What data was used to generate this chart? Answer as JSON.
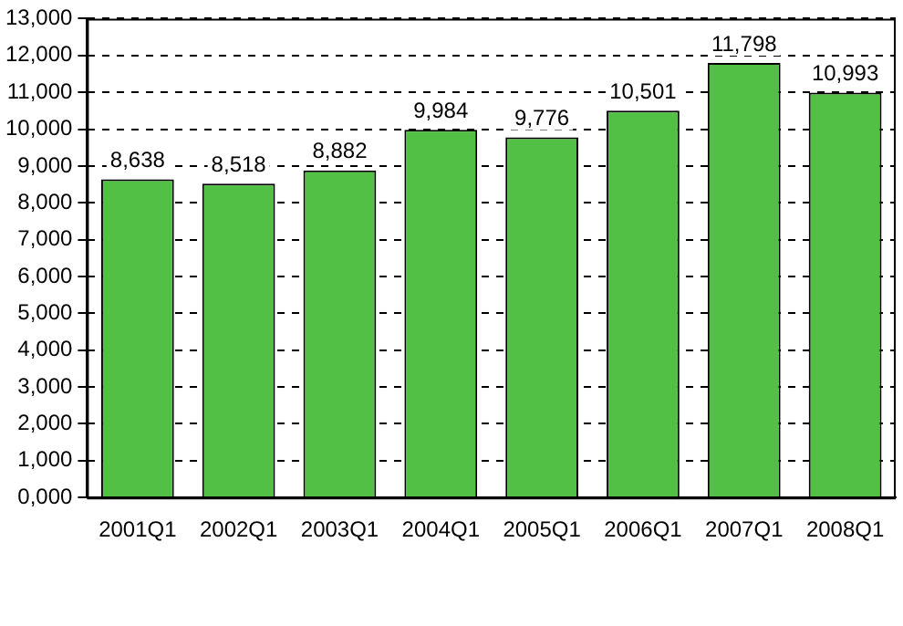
{
  "chart_data": {
    "type": "bar",
    "categories": [
      "2001Q1",
      "2002Q1",
      "2003Q1",
      "2004Q1",
      "2005Q1",
      "2006Q1",
      "2007Q1",
      "2008Q1"
    ],
    "values": [
      8638,
      8518,
      8882,
      9984,
      9776,
      10501,
      11798,
      10993
    ],
    "value_labels": [
      "8,638",
      "8,518",
      "8,882",
      "9,984",
      "9,776",
      "10,501",
      "11,798",
      "10,993"
    ],
    "color": "#52c044",
    "ylim": [
      0,
      13000
    ],
    "yticks": [
      {
        "value": 0,
        "label": "0,000"
      },
      {
        "value": 1000,
        "label": "1,000"
      },
      {
        "value": 2000,
        "label": "2,000"
      },
      {
        "value": 3000,
        "label": "3,000"
      },
      {
        "value": 4000,
        "label": "4,000"
      },
      {
        "value": 5000,
        "label": "5,000"
      },
      {
        "value": 6000,
        "label": "6,000"
      },
      {
        "value": 7000,
        "label": "7,000"
      },
      {
        "value": 8000,
        "label": "8,000"
      },
      {
        "value": 9000,
        "label": "9,000"
      },
      {
        "value": 10000,
        "label": "10,000"
      },
      {
        "value": 11000,
        "label": "11,000"
      },
      {
        "value": 12000,
        "label": "12,000"
      },
      {
        "value": 13000,
        "label": "13,000"
      }
    ],
    "grid": "y"
  }
}
